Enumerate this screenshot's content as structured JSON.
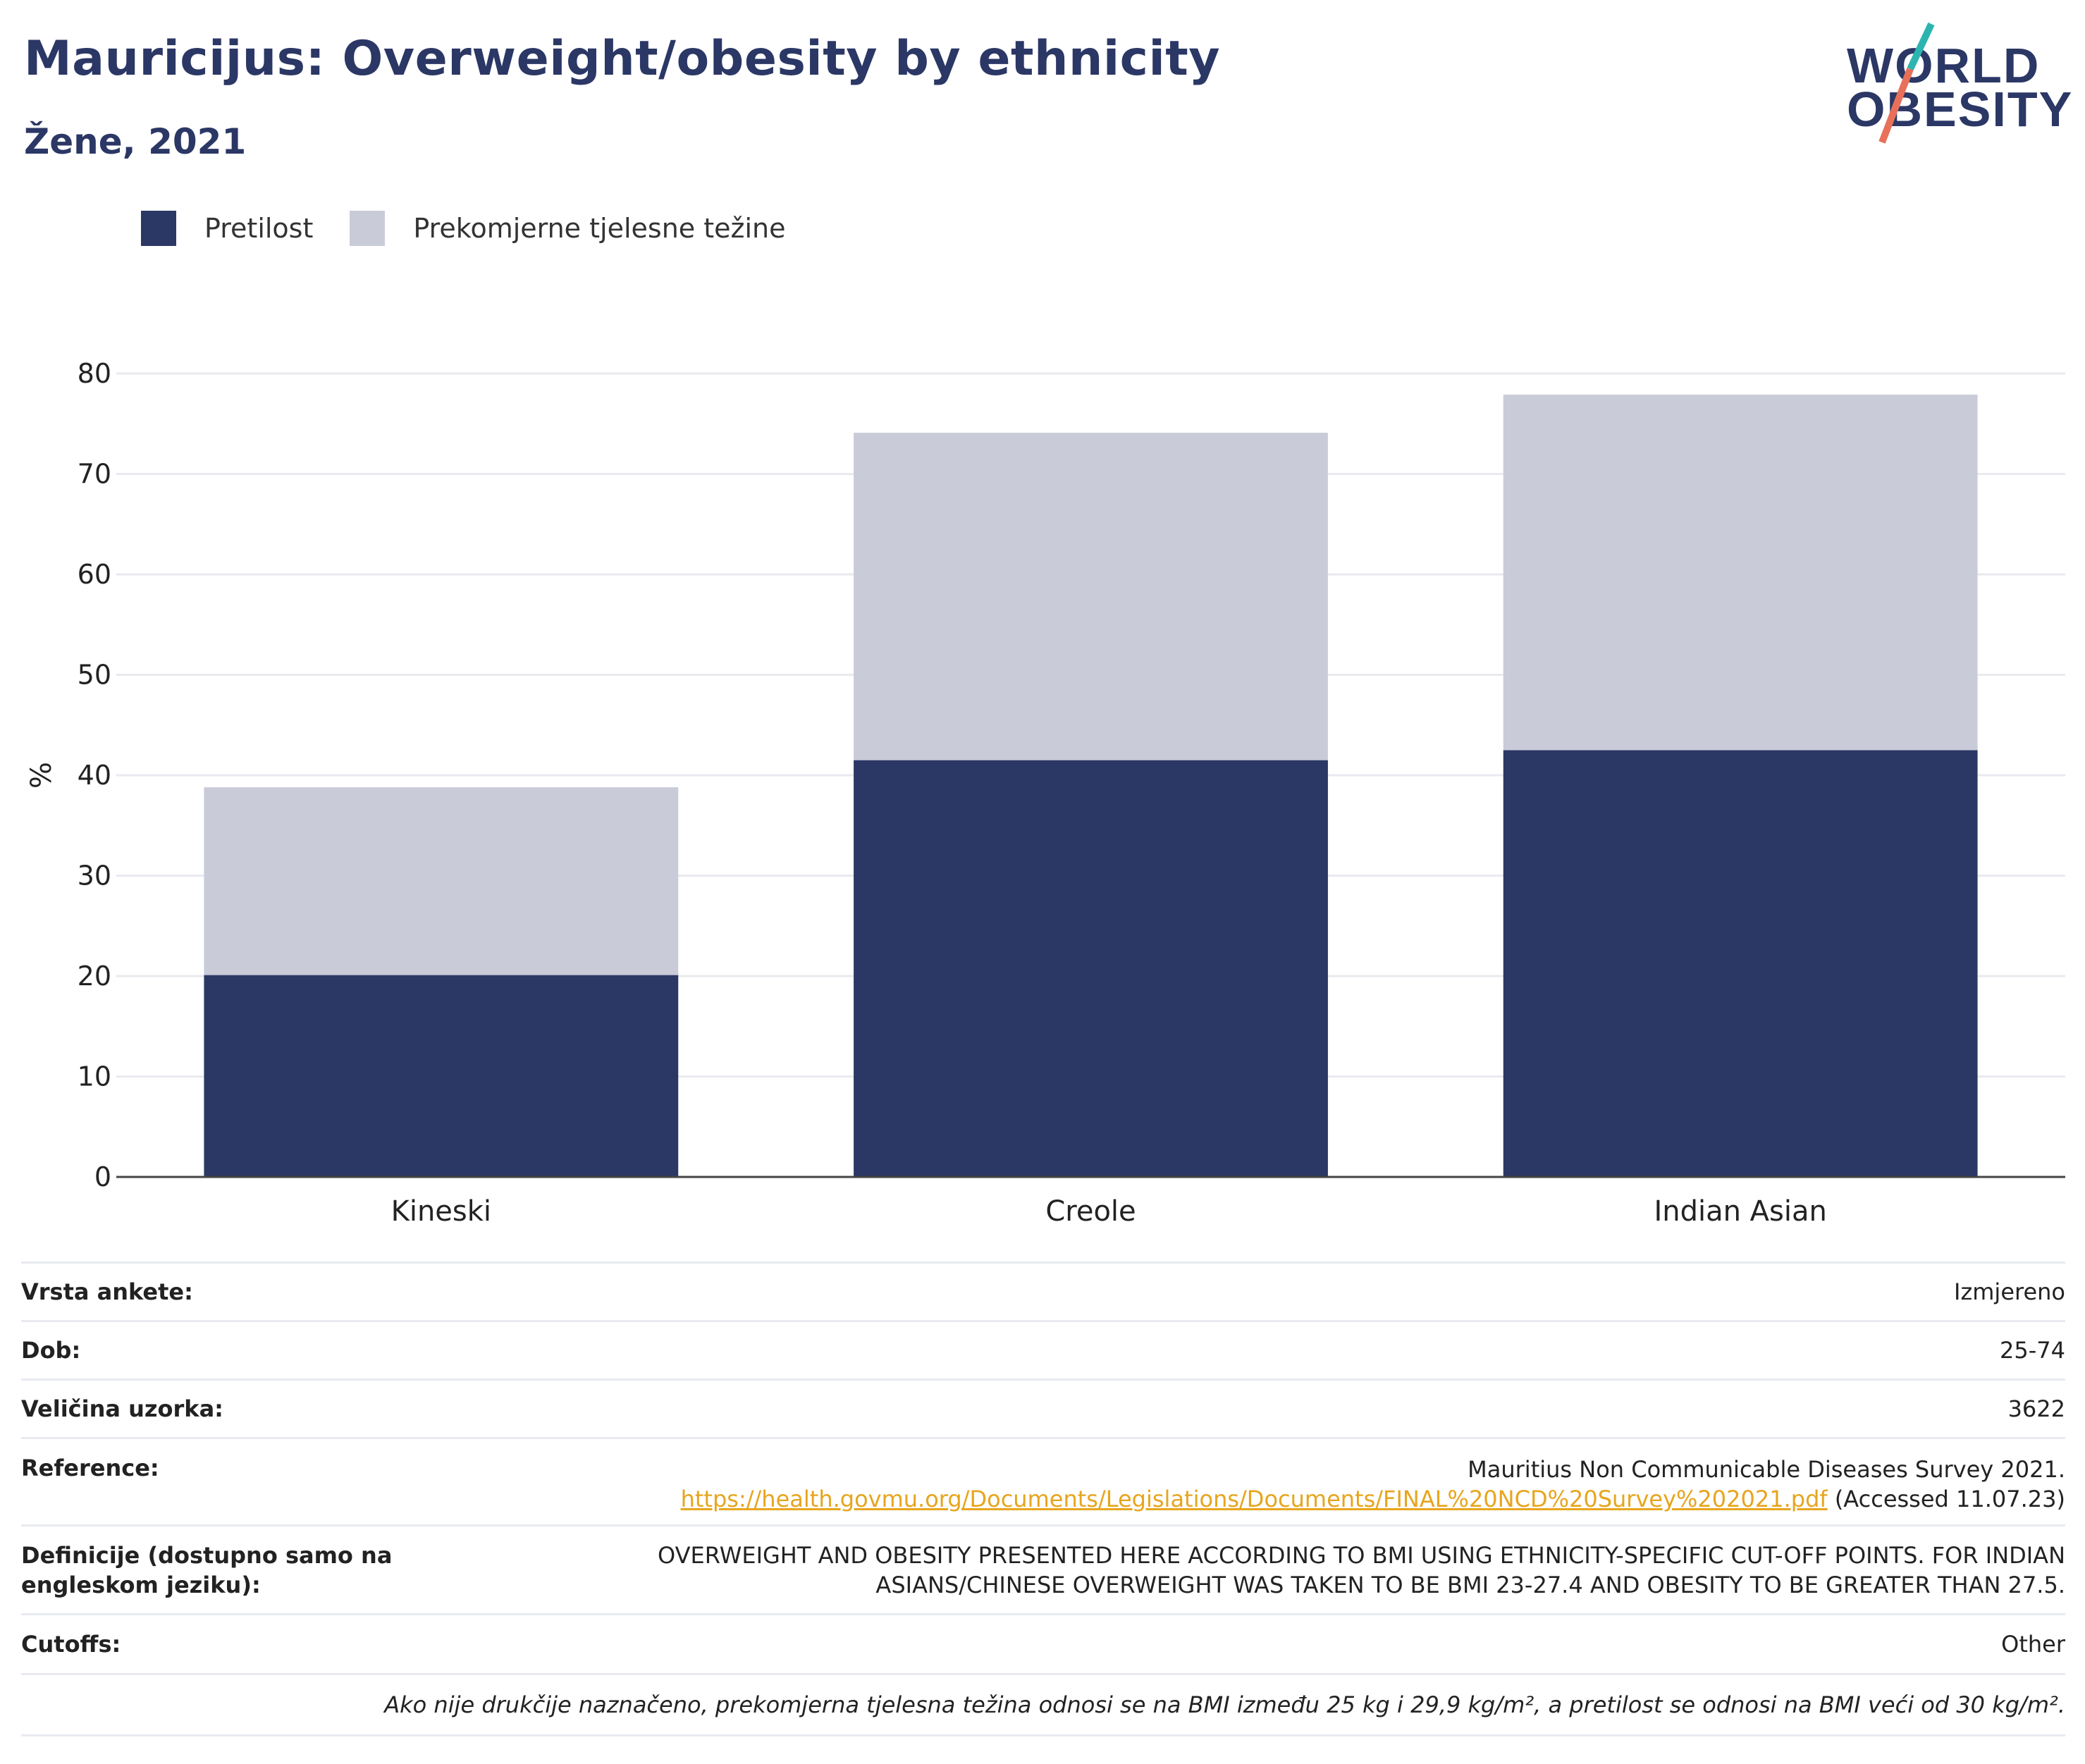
{
  "header": {
    "title": "Mauricijus: Overweight/obesity by ethnicity",
    "subtitle": "Žene, 2021"
  },
  "logo": {
    "line1": "WORLD",
    "line2": "OBESITY"
  },
  "colors": {
    "obesity": "#2b3765",
    "overweight": "#c9ccd8",
    "accent_teal": "#2cb5b0",
    "accent_red": "#e8705a",
    "link": "#e7a51e"
  },
  "legend": [
    {
      "label": "Pretilost",
      "color": "#2b3765"
    },
    {
      "label": "Prekomjerne tjelesne težine",
      "color": "#c9ccd8"
    }
  ],
  "chart_data": {
    "type": "bar",
    "stacked": true,
    "categories": [
      "Kineski",
      "Creole",
      "Indian Asian"
    ],
    "series": [
      {
        "name": "Pretilost",
        "values": [
          20.1,
          41.5,
          42.5
        ]
      },
      {
        "name": "Prekomjerne tjelesne težine",
        "values": [
          18.7,
          32.6,
          35.4
        ]
      }
    ],
    "ylabel": "%",
    "ylim": [
      0,
      80
    ],
    "yticks": [
      "0",
      "10",
      "20",
      "30",
      "40",
      "50",
      "60",
      "70",
      "80"
    ],
    "grid": true,
    "legend_position": "top-left"
  },
  "info": {
    "survey_type": {
      "label": "Vrsta ankete:",
      "value": "Izmjereno"
    },
    "age": {
      "label": "Dob:",
      "value": "25-74"
    },
    "sample": {
      "label": "Veličina uzorka:",
      "value": "3622"
    },
    "reference": {
      "label": "Reference:",
      "line1": "Mauritius Non Communicable Diseases Survey 2021.",
      "url": "https://health.govmu.org/Documents/Legislations/Documents/FINAL%20NCD%20Survey%202021.pdf",
      "accessed": "(Accessed 11.07.23)"
    },
    "definitions": {
      "label": "Definicije (dostupno samo na engleskom jeziku):",
      "line1": "OVERWEIGHT AND OBESITY PRESENTED HERE ACCORDING TO BMI USING ETHNICITY-SPECIFIC CUT-OFF POINTS. FOR INDIAN",
      "line2": "ASIANS/CHINESE OVERWEIGHT WAS TAKEN TO BE BMI 23-27.4 AND OBESITY TO BE GREATER THAN 27.5."
    },
    "cutoffs": {
      "label": "Cutoffs:",
      "value": "Other"
    },
    "footnote": "Ako nije drukčije naznačeno, prekomjerna tjelesna težina odnosi se na BMI između 25 kg i 29,9 kg/m², a pretilost se odnosi na BMI veći od 30 kg/m²."
  }
}
